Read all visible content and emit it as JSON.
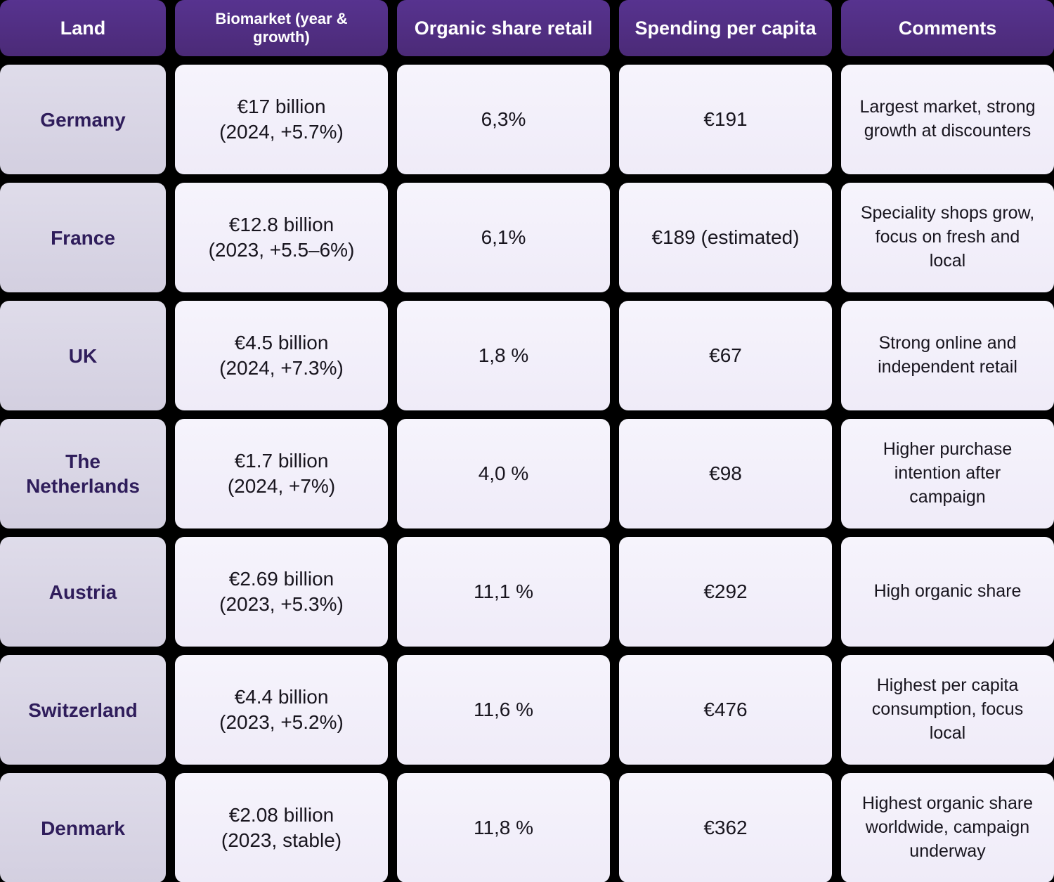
{
  "chart_data": {
    "type": "table",
    "columns": [
      "Land",
      "Biomarket (year & growth)",
      "Organic share retail",
      "Spending per capita",
      "Comments"
    ],
    "rows": [
      [
        "Germany",
        "€17 billion (2024, +5.7%)",
        "6,3%",
        "€191",
        "Largest market, strong growth at discounters"
      ],
      [
        "France",
        "€12.8 billion (2023, +5.5–6%)",
        "6,1%",
        "€189 (estimated)",
        "Speciality shops grow, focus on fresh and local"
      ],
      [
        "UK",
        "€4.5 billion (2024, +7.3%)",
        "1,8 %",
        "€67",
        "Strong online and independent retail"
      ],
      [
        "The Netherlands",
        "€1.7 billion (2024, +7%)",
        "4,0 %",
        "€98",
        "Higher purchase intention after campaign"
      ],
      [
        "Austria",
        "€2.69 billion (2023, +5.3%)",
        "11,1 %",
        "€292",
        "High organic share"
      ],
      [
        "Switzerland",
        "€4.4 billion (2023, +5.2%)",
        "11,6 %",
        "€476",
        "Highest per capita consumption, focus local"
      ],
      [
        "Denmark",
        "€2.08 billion (2023, stable)",
        "11,8 %",
        "€362",
        "Highest organic share worldwide, campaign underway"
      ]
    ]
  },
  "table": {
    "columns": [
      "Land",
      "Biomarket (year & growth)",
      "Organic share retail",
      "Spending per capita",
      "Comments"
    ],
    "rows": [
      {
        "land": "Germany",
        "biomarket_line1": "€17 billion",
        "biomarket_line2": "(2024, +5.7%)",
        "organic_share": "6,3%",
        "spending": "€191",
        "comment": "Largest market, strong growth at discounters"
      },
      {
        "land": "France",
        "biomarket_line1": "€12.8 billion",
        "biomarket_line2": "(2023, +5.5–6%)",
        "organic_share": "6,1%",
        "spending": "€189 (estimated)",
        "comment": "Speciality shops grow, focus on fresh and local"
      },
      {
        "land": "UK",
        "biomarket_line1": "€4.5 billion",
        "biomarket_line2": "(2024, +7.3%)",
        "organic_share": "1,8 %",
        "spending": "€67",
        "comment": "Strong online and independent retail"
      },
      {
        "land": "The Netherlands",
        "biomarket_line1": "€1.7 billion",
        "biomarket_line2": "(2024, +7%)",
        "organic_share": "4,0 %",
        "spending": "€98",
        "comment": "Higher purchase intention after campaign"
      },
      {
        "land": "Austria",
        "biomarket_line1": "€2.69 billion",
        "biomarket_line2": "(2023, +5.3%)",
        "organic_share": "11,1 %",
        "spending": "€292",
        "comment": "High organic share"
      },
      {
        "land": "Switzerland",
        "biomarket_line1": "€4.4 billion",
        "biomarket_line2": "(2023, +5.2%)",
        "organic_share": "11,6 %",
        "spending": "€476",
        "comment": "Highest per capita consumption, focus local"
      },
      {
        "land": "Denmark",
        "biomarket_line1": "€2.08 billion",
        "biomarket_line2": "(2023, stable)",
        "organic_share": "11,8 %",
        "spending": "€362",
        "comment": "Highest organic share worldwide, campaign underway"
      }
    ]
  },
  "colors": {
    "background": "#000000",
    "header_bg": "#523089",
    "header_text": "#ffffff",
    "land_cell_bg": "#d9d5e4",
    "land_text": "#2f1d5b",
    "data_cell_bg": "#f3f0fa",
    "data_text": "#18151e"
  }
}
